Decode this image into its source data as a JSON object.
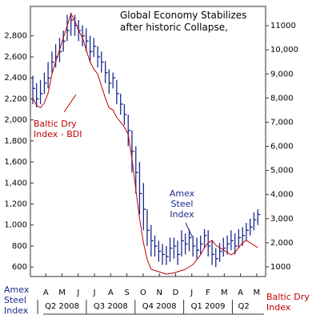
{
  "chart_data": {
    "type": "ohlc-line",
    "title": "Global Economy Stabilizes after historic Collapse,",
    "annotations": [
      {
        "text": "Baltic Dry Index - BDI",
        "color": "#c00000"
      },
      {
        "text": "Amex Steel Index",
        "color": "#1a2a8a"
      }
    ],
    "xlim": [
      -0.45,
      14.05
    ],
    "xticks": [
      {
        "value": 0.5,
        "label": "A"
      },
      {
        "value": 1.5,
        "label": "M"
      },
      {
        "value": 2.5,
        "label": "J"
      },
      {
        "value": 3.5,
        "label": "J"
      },
      {
        "value": 4.5,
        "label": "A"
      },
      {
        "value": 5.5,
        "label": "S"
      },
      {
        "value": 6.5,
        "label": "O"
      },
      {
        "value": 7.5,
        "label": "N"
      },
      {
        "value": 8.5,
        "label": "D"
      },
      {
        "value": 9.5,
        "label": "J"
      },
      {
        "value": 10.5,
        "label": "F"
      },
      {
        "value": 11.5,
        "label": "M"
      },
      {
        "value": 12.5,
        "label": "A"
      },
      {
        "value": 13.5,
        "label": "M"
      }
    ],
    "quarters": [
      {
        "value": 1.5,
        "label": "Q2 2008"
      },
      {
        "value": 4.5,
        "label": "Q3 2008"
      },
      {
        "value": 7.5,
        "label": "Q4 2008"
      },
      {
        "value": 10.5,
        "label": "Q1 2009"
      },
      {
        "value": 12.7,
        "label": "Q2"
      }
    ],
    "ylim": [
      510,
      3080
    ],
    "yticks": [
      600,
      800,
      {
        "value": 1000,
        "label": "1,000"
      },
      {
        "value": 1200,
        "label": "1,200"
      },
      {
        "value": 1400,
        "label": "1,400"
      },
      {
        "value": 1600,
        "label": "1,600"
      },
      {
        "value": 1800,
        "label": "1,800"
      },
      {
        "value": 2000,
        "label": "2,000"
      },
      {
        "value": 2200,
        "label": "2,200"
      },
      {
        "value": 2400,
        "label": "2,400"
      },
      {
        "value": 2600,
        "label": "2,600"
      },
      {
        "value": 2800,
        "label": "2,800"
      }
    ],
    "y2lim": [
      600,
      11800
    ],
    "y2ticks": [
      1000,
      {
        "value": 2000,
        "label": "2,000"
      },
      {
        "value": 3000,
        "label": "3,000"
      },
      {
        "value": 4000,
        "label": "4,000"
      },
      {
        "value": 5000,
        "label": "5,000"
      },
      {
        "value": 6000,
        "label": "6,000"
      },
      {
        "value": 7000,
        "label": "7,000"
      },
      {
        "value": 8000,
        "label": "8,000"
      },
      {
        "value": 9000,
        "label": "9,000"
      },
      {
        "value": 10000,
        "label": "10,000"
      },
      11000
    ],
    "x": [
      -0.3,
      -0.07,
      0.17,
      0.41,
      0.64,
      0.88,
      1.11,
      1.35,
      1.58,
      1.82,
      2.05,
      2.29,
      2.52,
      2.76,
      2.99,
      3.23,
      3.46,
      3.7,
      3.93,
      4.17,
      4.4,
      4.64,
      4.87,
      5.11,
      5.34,
      5.58,
      5.81,
      6.05,
      6.28,
      6.52,
      6.75,
      6.99,
      7.22,
      7.46,
      7.69,
      7.93,
      8.16,
      8.4,
      8.63,
      8.87,
      9.1,
      9.34,
      9.57,
      9.81,
      10.04,
      10.28,
      10.51,
      10.75,
      10.98,
      11.22,
      11.45,
      11.69,
      11.92,
      12.16,
      12.39,
      12.63,
      12.86,
      13.1,
      13.33,
      13.57
    ],
    "series": [
      {
        "name": "Amex Steel Index",
        "color": "#1a2a8a",
        "axis": "y",
        "high": [
          2420,
          2350,
          2380,
          2450,
          2550,
          2650,
          2720,
          2780,
          2850,
          3000,
          3020,
          3000,
          2950,
          2900,
          2870,
          2800,
          2780,
          2700,
          2650,
          2560,
          2480,
          2450,
          2380,
          2250,
          2150,
          2050,
          1900,
          1750,
          1600,
          1400,
          1150,
          1000,
          900,
          850,
          820,
          800,
          880,
          880,
          850,
          950,
          920,
          960,
          900,
          880,
          900,
          960,
          950,
          850,
          780,
          830,
          880,
          900,
          950,
          920,
          960,
          980,
          1020,
          1060,
          1120,
          1150
        ],
        "low": [
          2150,
          2120,
          2150,
          2250,
          2300,
          2450,
          2500,
          2550,
          2650,
          2750,
          2800,
          2800,
          2750,
          2700,
          2650,
          2550,
          2600,
          2500,
          2450,
          2350,
          2250,
          2300,
          2150,
          2050,
          1950,
          1750,
          1500,
          1300,
          1100,
          950,
          800,
          700,
          700,
          650,
          620,
          620,
          650,
          680,
          620,
          700,
          720,
          750,
          700,
          680,
          720,
          780,
          700,
          620,
          600,
          650,
          700,
          720,
          760,
          720,
          780,
          800,
          850,
          900,
          950,
          1000
        ],
        "close": [
          2300,
          2200,
          2250,
          2350,
          2400,
          2550,
          2600,
          2650,
          2750,
          2850,
          2950,
          2900,
          2850,
          2800,
          2750,
          2650,
          2700,
          2600,
          2550,
          2450,
          2350,
          2400,
          2250,
          2150,
          2050,
          1900,
          1700,
          1500,
          1300,
          1150,
          950,
          850,
          800,
          750,
          720,
          700,
          780,
          800,
          720,
          850,
          820,
          880,
          800,
          760,
          820,
          900,
          800,
          720,
          680,
          750,
          780,
          820,
          850,
          800,
          880,
          900,
          950,
          980,
          1050,
          1100
        ]
      },
      {
        "name": "Baltic Dry Index",
        "color": "#c00000",
        "axis": "y2",
        "values": [
          8000,
          7700,
          7600,
          7800,
          8200,
          9000,
          9500,
          10000,
          10500,
          11000,
          11500,
          11200,
          10800,
          10500,
          10000,
          9500,
          9200,
          9000,
          8500,
          8000,
          7600,
          7500,
          7200,
          7000,
          6800,
          6500,
          5500,
          4200,
          3000,
          2000,
          1300,
          900,
          850,
          800,
          750,
          700,
          720,
          750,
          800,
          850,
          900,
          1000,
          1100,
          1300,
          1500,
          1800,
          2000,
          2100,
          1900,
          1800,
          1700,
          1600,
          1500,
          1600,
          1800,
          2000,
          2100,
          2000,
          1900,
          1800
        ]
      }
    ]
  }
}
